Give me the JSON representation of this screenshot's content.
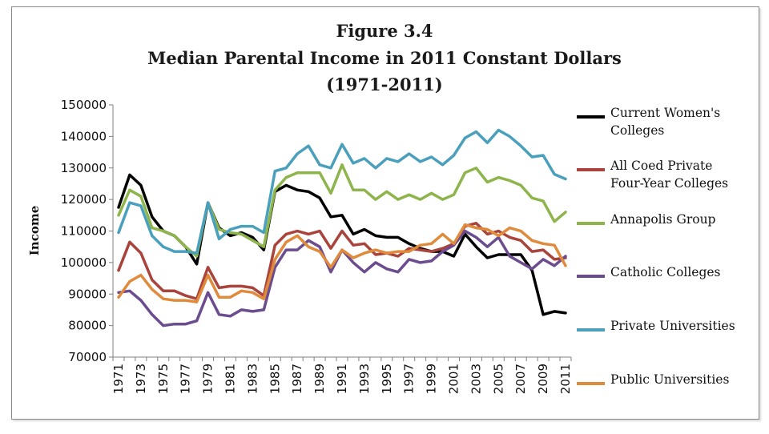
{
  "chart_data": {
    "type": "line",
    "title": [
      "Figure 3.4",
      "Median Parental Income in 2011 Constant Dollars",
      "(1971-2011)"
    ],
    "xlabel": "",
    "ylabel": "Income",
    "ylim": [
      70000,
      150000
    ],
    "yticks": [
      70000,
      80000,
      90000,
      100000,
      110000,
      120000,
      130000,
      140000,
      150000
    ],
    "x": [
      1971,
      1972,
      1973,
      1974,
      1975,
      1976,
      1977,
      1978,
      1979,
      1980,
      1981,
      1982,
      1983,
      1984,
      1985,
      1986,
      1987,
      1988,
      1989,
      1990,
      1991,
      1992,
      1993,
      1994,
      1995,
      1996,
      1997,
      1998,
      1999,
      2000,
      2001,
      2002,
      2003,
      2004,
      2005,
      2006,
      2007,
      2008,
      2009,
      2010,
      2011
    ],
    "xticks": [
      1971,
      1973,
      1975,
      1977,
      1979,
      1981,
      1983,
      1985,
      1987,
      1989,
      1991,
      1993,
      1995,
      1997,
      1999,
      2001,
      2003,
      2005,
      2007,
      2009,
      2011
    ],
    "legend_position": "right",
    "series": [
      {
        "name": "Current Women's Colleges",
        "color": "#000000",
        "values": [
          117500,
          127800,
          124500,
          114500,
          110000,
          108500,
          105000,
          99500,
          119000,
          111000,
          108500,
          109500,
          108000,
          104000,
          122500,
          124500,
          123000,
          122500,
          120500,
          114500,
          115000,
          109000,
          110500,
          108500,
          108000,
          108000,
          106000,
          104500,
          103500,
          103500,
          102000,
          109000,
          105000,
          101500,
          102500,
          102500,
          102500,
          97500,
          83500,
          84500,
          84000
        ]
      },
      {
        "name": "All Coed Private Four-Year Colleges",
        "color": "#a9433b",
        "values": [
          97500,
          106500,
          103000,
          94500,
          91000,
          91000,
          89500,
          88500,
          98500,
          92000,
          92500,
          92500,
          92000,
          89500,
          105500,
          109000,
          110000,
          109000,
          110000,
          104500,
          110000,
          105500,
          106000,
          102500,
          103000,
          102000,
          104500,
          104000,
          103500,
          104500,
          106000,
          111500,
          112500,
          109000,
          110000,
          108000,
          107000,
          103500,
          104000,
          101000,
          101500
        ]
      },
      {
        "name": "Annapolis Group",
        "color": "#8db54b",
        "values": [
          115000,
          123000,
          121000,
          111000,
          110000,
          108500,
          105000,
          102000,
          119000,
          110500,
          109500,
          109000,
          107000,
          105000,
          123000,
          127000,
          128500,
          128500,
          128500,
          122000,
          131000,
          123000,
          123000,
          120000,
          122500,
          120000,
          121500,
          120000,
          122000,
          120000,
          121500,
          128500,
          130000,
          125500,
          127000,
          126000,
          124500,
          120500,
          119500,
          113000,
          116000
        ]
      },
      {
        "name": "Catholic Colleges",
        "color": "#6b4c8e",
        "values": [
          90500,
          91000,
          88000,
          83500,
          80000,
          80500,
          80500,
          81500,
          90500,
          83500,
          83000,
          85000,
          84500,
          85000,
          98500,
          104000,
          104000,
          107000,
          105000,
          97000,
          104000,
          100000,
          97000,
          100000,
          98000,
          97000,
          101000,
          100000,
          100500,
          103500,
          105500,
          110000,
          108000,
          105000,
          108000,
          102000,
          100000,
          98000,
          101000,
          99000,
          102000
        ]
      },
      {
        "name": "Private Universities",
        "color": "#4aa0bc",
        "values": [
          109500,
          119000,
          118000,
          108500,
          105000,
          103500,
          103500,
          103000,
          119000,
          107500,
          110500,
          111500,
          111500,
          109500,
          129000,
          130000,
          134500,
          137000,
          131000,
          130000,
          137500,
          131500,
          133000,
          130000,
          133000,
          132000,
          134500,
          132000,
          133500,
          131000,
          134000,
          139500,
          141500,
          138000,
          142000,
          140000,
          137000,
          133500,
          134000,
          128000,
          126500
        ]
      },
      {
        "name": "Public Universities",
        "color": "#e08a3c",
        "values": [
          89000,
          94000,
          96000,
          91500,
          88500,
          88000,
          88000,
          87500,
          96000,
          89000,
          89000,
          91000,
          90500,
          88500,
          101000,
          106500,
          108500,
          105000,
          103500,
          98500,
          104000,
          101500,
          103000,
          104000,
          103000,
          103500,
          103500,
          105500,
          106000,
          109000,
          106000,
          112000,
          111000,
          110500,
          108500,
          111000,
          110000,
          107000,
          106000,
          105500,
          99000
        ]
      }
    ]
  }
}
